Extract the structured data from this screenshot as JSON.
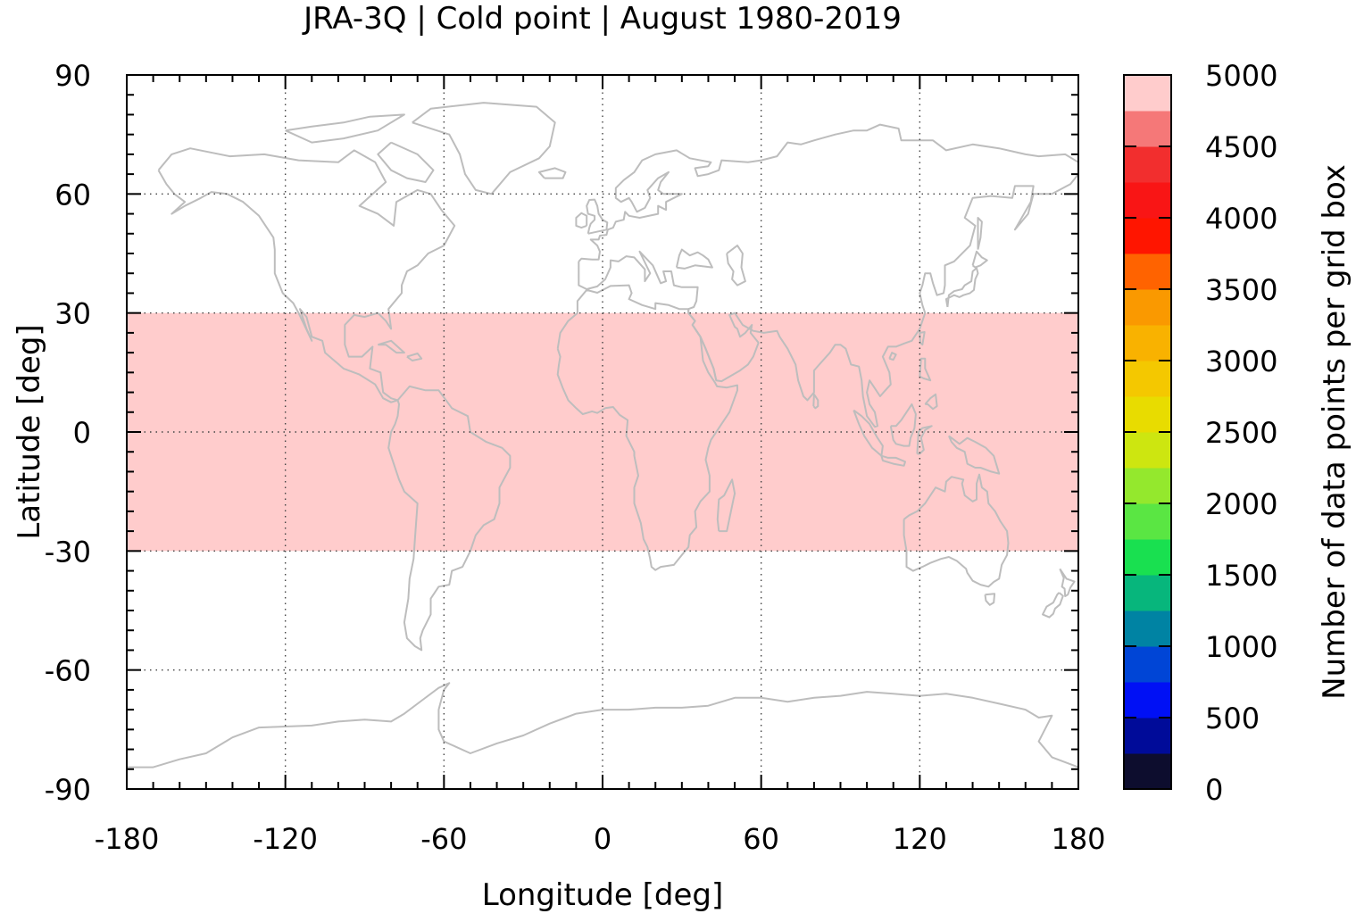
{
  "title": "JRA-3Q | Cold point | August 1980-2019",
  "x_axis": {
    "label": "Longitude [deg]",
    "range": [
      -180,
      180
    ],
    "ticks": [
      -180,
      -120,
      -60,
      0,
      60,
      120,
      180
    ],
    "tick_labels": [
      "-180",
      "-120",
      "-60",
      "0",
      "60",
      "120",
      "180"
    ],
    "minor_step": 10,
    "grid": "dotted"
  },
  "y_axis": {
    "label": "Latitude [deg]",
    "range": [
      -90,
      90
    ],
    "ticks": [
      -90,
      -60,
      -30,
      0,
      30,
      60,
      90
    ],
    "tick_labels": [
      "-90",
      "-60",
      "-30",
      "0",
      "30",
      "60",
      "90"
    ],
    "minor_step": 5,
    "grid": "dotted"
  },
  "data_region": {
    "lon_range": [
      -180,
      180
    ],
    "lat_range": [
      -30,
      30
    ],
    "value_bin": "4750-5000",
    "color": "#ffcccc"
  },
  "coastlines": {
    "color": "#bdbdbd"
  },
  "colorbar": {
    "label": "Number of data points per grid box",
    "range": [
      0,
      5000
    ],
    "tick_values": [
      0,
      500,
      1000,
      1500,
      2000,
      2500,
      3000,
      3500,
      4000,
      4500,
      5000
    ],
    "tick_labels": [
      "0",
      "500",
      "1000",
      "1500",
      "2000",
      "2500",
      "3000",
      "3500",
      "4000",
      "4500",
      "5000"
    ],
    "bin_width": 250,
    "colors": [
      "#0d0d2e",
      "#000b99",
      "#0010f5",
      "#0045d6",
      "#0083a3",
      "#07b67c",
      "#19e050",
      "#5ae643",
      "#94e82d",
      "#cde610",
      "#e8dc00",
      "#f4c800",
      "#f9b200",
      "#fa9900",
      "#ff6300",
      "#ff1500",
      "#f91515",
      "#f22e2e",
      "#f57878",
      "#ffcccc"
    ]
  }
}
